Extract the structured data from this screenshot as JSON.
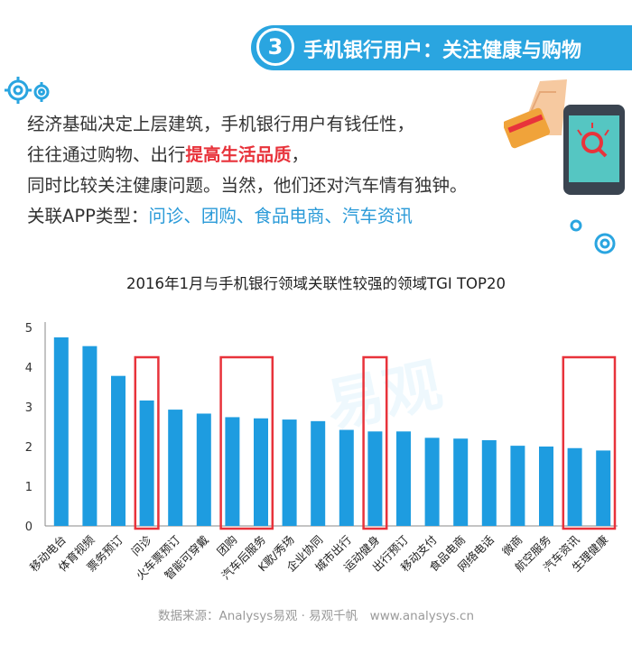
{
  "header": {
    "number": "3",
    "title": "手机银行用户：关注健康与购物"
  },
  "intro": {
    "line1": "经济基础决定上层建筑，手机银行用户有钱任性，",
    "line2_pre": "往往通过购物、出行",
    "line2_highlight": "提高生活品质",
    "line2_post": "，",
    "line3": "同时比较关注健康问题。当然，他们还对汽车情有独钟。",
    "line4_label": "关联APP类型：",
    "line4_types": "问诊、团购、食品电商、汽车资讯"
  },
  "chart_data": {
    "type": "bar",
    "title": "2016年1月与手机银行领域关联性较强的领域TGI TOP20",
    "categories": [
      "移动电台",
      "体育视频",
      "票务预订",
      "问诊",
      "火车票预订",
      "智能可穿戴",
      "团购",
      "汽车后服务",
      "K歌/秀场",
      "企业协同",
      "城市出行",
      "运动健身",
      "出行预订",
      "移动支付",
      "食品电商",
      "网络电话",
      "微商",
      "航空服务",
      "汽车资讯",
      "生理健康"
    ],
    "values": [
      4.75,
      4.53,
      3.78,
      3.16,
      2.93,
      2.83,
      2.74,
      2.71,
      2.68,
      2.64,
      2.42,
      2.38,
      2.38,
      2.22,
      2.2,
      2.16,
      2.02,
      2.0,
      1.96,
      1.9
    ],
    "ylim": [
      0,
      5
    ],
    "yticks": [
      "0",
      "1",
      "2",
      "3",
      "4",
      "5"
    ],
    "grid": false,
    "bar_color": "#1e9ce0",
    "highlight_groups": [
      [
        3,
        3
      ],
      [
        6,
        7
      ],
      [
        11,
        11
      ],
      [
        18,
        19
      ]
    ],
    "highlight_color": "#e8333b"
  },
  "watermark": "易观",
  "source": "数据来源：Analysys易观 · 易观千帆　www.analysys.cn",
  "colors": {
    "accent": "#2aa5e0",
    "highlight": "#e8333b"
  }
}
